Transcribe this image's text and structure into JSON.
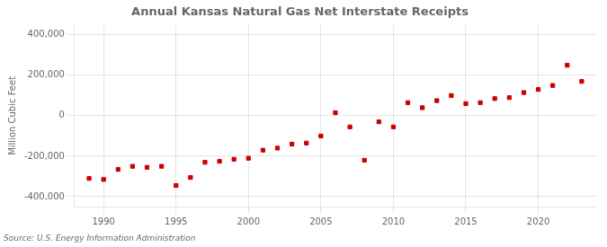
{
  "chart_data": {
    "type": "scatter",
    "title": "Annual Kansas Natural Gas Net Interstate Receipts",
    "ylabel": "Million Cubic Feet",
    "source": "Source: U.S. Energy Information Administration",
    "x": [
      1989,
      1990,
      1991,
      1992,
      1993,
      1994,
      1995,
      1996,
      1997,
      1998,
      1999,
      2000,
      2001,
      2002,
      2003,
      2004,
      2005,
      2006,
      2007,
      2008,
      2009,
      2010,
      2011,
      2012,
      2013,
      2014,
      2015,
      2016,
      2017,
      2018,
      2019,
      2020,
      2021,
      2022,
      2023
    ],
    "values": [
      -310000,
      -315000,
      -265000,
      -250000,
      -255000,
      -250000,
      -345000,
      -305000,
      -230000,
      -225000,
      -215000,
      -210000,
      -170000,
      -160000,
      -140000,
      -135000,
      -100000,
      15000,
      -55000,
      -220000,
      -30000,
      -55000,
      65000,
      40000,
      75000,
      100000,
      60000,
      65000,
      85000,
      90000,
      115000,
      130000,
      150000,
      250000,
      170000
    ],
    "color": "#cc0000",
    "marker": "square",
    "xlim": [
      1988,
      2024
    ],
    "xticks": [
      1990,
      1995,
      2000,
      2005,
      2010,
      2015,
      2020
    ],
    "ylim": [
      -450000,
      450000
    ],
    "yticks": [
      {
        "value": -400000,
        "label": "-400,000"
      },
      {
        "value": -200000,
        "label": "-200,000"
      },
      0,
      {
        "value": 200000,
        "label": "200,000"
      },
      {
        "value": 400000,
        "label": "400,000"
      }
    ],
    "grid": true
  }
}
